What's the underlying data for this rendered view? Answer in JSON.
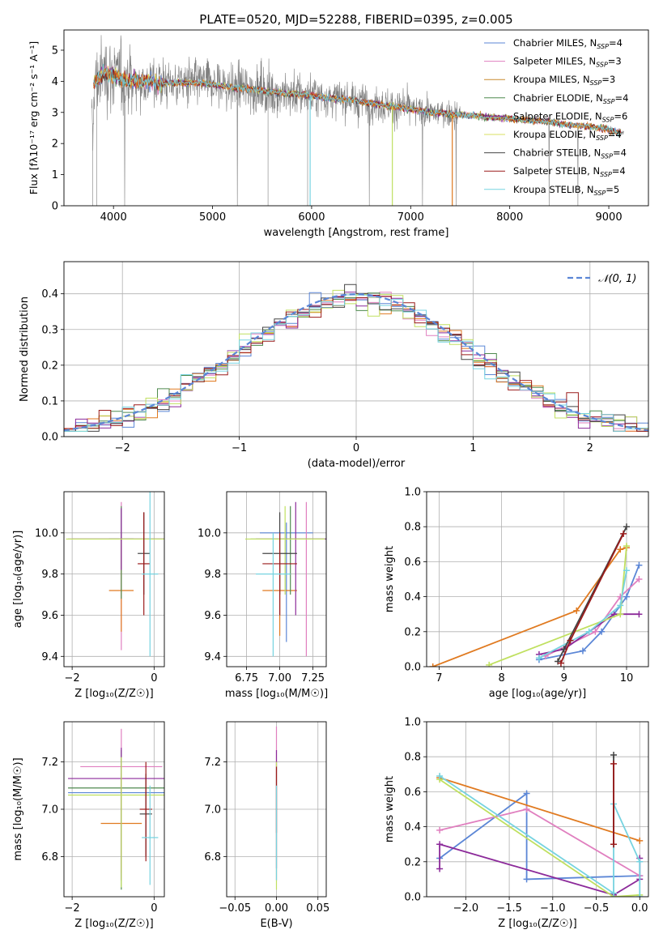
{
  "title": "PLATE=0520, MJD=52288, FIBERID=0395, z=0.005",
  "colors": {
    "c1": "#5b86d6",
    "c2": "#e07fbf",
    "c3": "#c98a2e",
    "c4": "#4f8a4f",
    "c5": "#8c2a9a",
    "c6": "#d8e060",
    "c7": "#444444",
    "c8": "#9b1b1b",
    "c9": "#76d3e0",
    "orange": "#e07a20",
    "green": "#c0e060",
    "gray": "#7f7f7f"
  },
  "chart_data": [
    {
      "id": "spectrum",
      "type": "line",
      "xlabel": "wavelength [Angstrom, rest frame]",
      "ylabel_html": "Flux [fλ10⁻¹⁷ erg cm⁻² s⁻¹ A⁻¹]",
      "xlim": [
        3500,
        9400
      ],
      "ylim": [
        0,
        5.65
      ],
      "xticks": [
        4000,
        5000,
        6000,
        7000,
        8000,
        9000
      ],
      "yticks": [
        0,
        1,
        2,
        3,
        4,
        5
      ],
      "legend": [
        {
          "label": "Chabrier MILES, N",
          "sub": "SSP",
          "suffix": "=4",
          "color": "c1"
        },
        {
          "label": "Salpeter MILES, N",
          "sub": "SSP",
          "suffix": "=3",
          "color": "c2"
        },
        {
          "label": "Kroupa MILES, N",
          "sub": "SSP",
          "suffix": "=3",
          "color": "c3"
        },
        {
          "label": "Chabrier ELODIE, N",
          "sub": "SSP",
          "suffix": "=4",
          "color": "c4"
        },
        {
          "label": "Salpeter ELODIE, N",
          "sub": "SSP",
          "suffix": "=6",
          "color": "c5"
        },
        {
          "label": "Kroupa ELODIE, N",
          "sub": "SSP",
          "suffix": "=4",
          "color": "c6"
        },
        {
          "label": "Chabrier STELIB, N",
          "sub": "SSP",
          "suffix": "=4",
          "color": "c7"
        },
        {
          "label": "Salpeter STELIB, N",
          "sub": "SSP",
          "suffix": "=4",
          "color": "c8"
        },
        {
          "label": "Kroupa STELIB, N",
          "sub": "SSP",
          "suffix": "=5",
          "color": "c9"
        }
      ],
      "model_envelope": [
        [
          3800,
          3.9
        ],
        [
          3900,
          4.3
        ],
        [
          4000,
          4.2
        ],
        [
          4100,
          4.05
        ],
        [
          4300,
          4.0
        ],
        [
          4500,
          3.95
        ],
        [
          4800,
          3.95
        ],
        [
          5000,
          3.9
        ],
        [
          5200,
          3.8
        ],
        [
          5400,
          3.75
        ],
        [
          5600,
          3.65
        ],
        [
          5800,
          3.6
        ],
        [
          6000,
          3.55
        ],
        [
          6200,
          3.45
        ],
        [
          6400,
          3.4
        ],
        [
          6600,
          3.3
        ],
        [
          6800,
          3.2
        ],
        [
          7000,
          3.1
        ],
        [
          7200,
          3.0
        ],
        [
          7400,
          2.95
        ],
        [
          7600,
          2.9
        ],
        [
          7800,
          2.85
        ],
        [
          8000,
          2.8
        ],
        [
          8200,
          2.75
        ],
        [
          8400,
          2.7
        ],
        [
          8600,
          2.6
        ],
        [
          8800,
          2.55
        ],
        [
          9000,
          2.45
        ],
        [
          9100,
          2.35
        ]
      ]
    },
    {
      "id": "residuals",
      "type": "histogram",
      "xlabel": "(data-model)/error",
      "ylabel": "Normed distribution",
      "xlim": [
        -2.5,
        2.5
      ],
      "ylim": [
        0,
        0.49
      ],
      "xticks": [
        -2,
        -1,
        0,
        1,
        2
      ],
      "yticks": [
        0.0,
        0.1,
        0.2,
        0.3,
        0.4
      ],
      "legend_label": "𝒩(0, 1)",
      "bin_width": 0.1
    },
    {
      "id": "age_vs_Z",
      "type": "errorbar",
      "xlabel": "Z [log₁₀(Z/Z☉)]",
      "ylabel": "age  [log₁₀(age/yr)]",
      "xlim": [
        -2.2,
        0.25
      ],
      "ylim": [
        9.35,
        10.2
      ],
      "xticks": [
        -2,
        0
      ],
      "yticks": [
        9.4,
        9.6,
        9.8,
        10.0
      ],
      "points": [
        {
          "x": -0.8,
          "y": 9.97,
          "xerr": 1.3,
          "yerr": 0.15,
          "color": "c1"
        },
        {
          "x": -0.8,
          "y": 9.97,
          "xerr": 1.3,
          "yerr": 0.0,
          "color": "c2",
          "ymin": 9.43,
          "ymax": 10.15
        },
        {
          "x": -0.8,
          "y": 9.72,
          "xerr": 0.3,
          "yerr": 0.0,
          "color": "orange",
          "ymin": 9.52,
          "ymax": 9.97
        },
        {
          "x": -0.8,
          "y": 9.97,
          "xerr": 0.3,
          "yerr": 0.0,
          "color": "c4",
          "ymin": 9.68,
          "ymax": 10.13
        },
        {
          "x": -0.8,
          "y": 9.97,
          "xerr": 1.2,
          "yerr": 0.15,
          "color": "c5"
        },
        {
          "x": -0.8,
          "y": 9.97,
          "xerr": 1.35,
          "yerr": 0.0,
          "color": "green"
        },
        {
          "x": -0.25,
          "y": 9.9,
          "xerr": 0.15,
          "yerr": 0.2,
          "color": "c7"
        },
        {
          "x": -0.25,
          "y": 9.85,
          "xerr": 0.15,
          "yerr": 0.25,
          "color": "c8"
        },
        {
          "x": -0.1,
          "y": 9.8,
          "xerr": 0.2,
          "yerr": 0.4,
          "color": "c9"
        }
      ]
    },
    {
      "id": "age_vs_mass",
      "type": "errorbar",
      "xlabel": "mass [log₁₀(M/M☉)]",
      "xlim": [
        6.6,
        7.35
      ],
      "ylim": [
        9.35,
        10.2
      ],
      "xticks": [
        6.75,
        7.0,
        7.25
      ],
      "yticks": [
        9.4,
        9.6,
        9.8,
        10.0
      ],
      "points": [
        {
          "x": 7.05,
          "y": 10.0,
          "xerr": 0.2,
          "ymin": 9.47,
          "ymax": 10.05,
          "color": "c1"
        },
        {
          "x": 7.2,
          "y": 9.97,
          "xerr": 0.18,
          "ymin": 9.4,
          "ymax": 10.15,
          "color": "c2"
        },
        {
          "x": 7.0,
          "y": 9.72,
          "xerr": 0.13,
          "ymin": 9.5,
          "ymax": 9.9,
          "color": "orange"
        },
        {
          "x": 7.08,
          "y": 9.97,
          "xerr": 0.3,
          "ymin": 9.7,
          "ymax": 10.13,
          "color": "c4"
        },
        {
          "x": 7.12,
          "y": 9.97,
          "xerr": 0.3,
          "ymin": 9.6,
          "ymax": 10.15,
          "color": "c5"
        },
        {
          "x": 7.04,
          "y": 9.97,
          "xerr": 0.3,
          "ymin": 9.7,
          "ymax": 10.13,
          "color": "green"
        },
        {
          "x": 7.0,
          "y": 9.9,
          "xerr": 0.13,
          "ymin": 9.7,
          "ymax": 10.1,
          "color": "c7"
        },
        {
          "x": 7.0,
          "y": 9.85,
          "xerr": 0.13,
          "ymin": 9.6,
          "ymax": 10.0,
          "color": "c8"
        },
        {
          "x": 6.95,
          "y": 9.8,
          "xerr": 0.13,
          "ymin": 9.4,
          "ymax": 10.0,
          "color": "c9"
        }
      ]
    },
    {
      "id": "mass_weight_vs_age",
      "type": "line",
      "xlabel": "age  [log₁₀(age/yr)]",
      "ylabel": "mass weight",
      "xlim": [
        6.8,
        10.35
      ],
      "ylim": [
        0,
        1.0
      ],
      "xticks": [
        7,
        8,
        9,
        10
      ],
      "yticks": [
        0.0,
        0.2,
        0.4,
        0.6,
        0.8,
        1.0
      ],
      "series": [
        {
          "color": "c1",
          "x": [
            8.6,
            9.3,
            9.6,
            10.0,
            10.2
          ],
          "y": [
            0.04,
            0.09,
            0.2,
            0.4,
            0.58
          ]
        },
        {
          "color": "c2",
          "x": [
            8.7,
            9.5,
            9.9,
            10.2
          ],
          "y": [
            0.06,
            0.2,
            0.4,
            0.5
          ]
        },
        {
          "color": "orange",
          "x": [
            6.9,
            9.2,
            9.9,
            10.0
          ],
          "y": [
            0.0,
            0.32,
            0.67,
            0.68
          ]
        },
        {
          "color": "c5",
          "x": [
            8.6,
            9.0,
            9.8,
            10.2
          ],
          "y": [
            0.07,
            0.1,
            0.3,
            0.3
          ]
        },
        {
          "color": "green",
          "x": [
            7.8,
            9.9,
            10.0
          ],
          "y": [
            0.01,
            0.3,
            0.69
          ]
        },
        {
          "color": "c9",
          "x": [
            8.6,
            9.4,
            9.9,
            10.0
          ],
          "y": [
            0.05,
            0.2,
            0.35,
            0.55
          ]
        },
        {
          "color": "c7",
          "x": [
            8.9,
            9.0,
            10.0
          ],
          "y": [
            0.03,
            0.1,
            0.8
          ]
        },
        {
          "color": "c8",
          "x": [
            8.95,
            9.1,
            9.95
          ],
          "y": [
            0.02,
            0.15,
            0.76
          ]
        }
      ]
    },
    {
      "id": "mass_vs_Z",
      "type": "errorbar",
      "xlabel": "Z [log₁₀(Z/Z☉)]",
      "ylabel": "mass [log₁₀(M/M☉)]",
      "xlim": [
        -2.2,
        0.25
      ],
      "ylim": [
        6.63,
        7.37
      ],
      "xticks": [
        -2,
        0
      ],
      "yticks": [
        6.8,
        7.0,
        7.2
      ],
      "points": [
        {
          "x": -0.8,
          "y": 7.07,
          "xerr": 1.3,
          "ymin": 6.7,
          "ymax": 7.2,
          "color": "c1"
        },
        {
          "x": -0.8,
          "y": 7.18,
          "xerr": 1.0,
          "ymin": 6.9,
          "ymax": 7.34,
          "color": "c2"
        },
        {
          "x": -0.8,
          "y": 6.94,
          "xerr": 0.5,
          "ymin": 6.73,
          "ymax": 7.15,
          "color": "orange"
        },
        {
          "x": -0.8,
          "y": 7.09,
          "xerr": 1.3,
          "ymin": 6.66,
          "ymax": 7.25,
          "color": "c4"
        },
        {
          "x": -0.8,
          "y": 7.13,
          "xerr": 1.3,
          "ymin": 6.7,
          "ymax": 7.26,
          "color": "c5"
        },
        {
          "x": -0.8,
          "y": 7.06,
          "xerr": 1.3,
          "ymin": 6.67,
          "ymax": 7.22,
          "color": "green"
        },
        {
          "x": -0.2,
          "y": 6.98,
          "xerr": 0.15,
          "ymin": 6.8,
          "ymax": 7.15,
          "color": "c7"
        },
        {
          "x": -0.2,
          "y": 7.0,
          "xerr": 0.15,
          "ymin": 6.78,
          "ymax": 7.2,
          "color": "c8"
        },
        {
          "x": -0.1,
          "y": 6.88,
          "xerr": 0.2,
          "ymin": 6.68,
          "ymax": 7.1,
          "color": "c9"
        }
      ]
    },
    {
      "id": "mass_vs_EBV",
      "type": "errorbar",
      "xlabel": "E(B-V)",
      "xlim": [
        -0.06,
        0.06
      ],
      "ylim": [
        6.63,
        7.37
      ],
      "xticks": [
        -0.05,
        0.0,
        0.05
      ],
      "yticks": [
        6.8,
        7.0,
        7.2
      ],
      "points": [
        {
          "x": 0.0,
          "ymin": 6.7,
          "ymax": 7.35,
          "color": "c2"
        },
        {
          "x": 0.0,
          "ymin": 6.75,
          "ymax": 7.25,
          "color": "c5"
        },
        {
          "x": 0.0,
          "ymin": 6.66,
          "ymax": 7.2,
          "color": "green"
        },
        {
          "x": 0.0,
          "ymin": 6.9,
          "ymax": 7.18,
          "color": "c8"
        },
        {
          "x": 0.0,
          "ymin": 6.7,
          "ymax": 7.1,
          "color": "c9"
        }
      ]
    },
    {
      "id": "mass_weight_vs_Z",
      "type": "line",
      "xlabel": "Z [log₁₀(Z/Z☉)]",
      "ylabel": "mass weight",
      "xlim": [
        -2.45,
        0.1
      ],
      "ylim": [
        0,
        1.0
      ],
      "xticks": [
        -2.0,
        -1.5,
        -1.0,
        -0.5,
        0.0
      ],
      "yticks": [
        0.0,
        0.2,
        0.4,
        0.6,
        0.8,
        1.0
      ],
      "series": [
        {
          "color": "c1",
          "x": [
            -2.3,
            -1.3,
            -1.3,
            0.0
          ],
          "y": [
            0.22,
            0.59,
            0.1,
            0.12
          ]
        },
        {
          "color": "c2",
          "x": [
            -2.3,
            -1.3,
            0.0
          ],
          "y": [
            0.38,
            0.5,
            0.12
          ]
        },
        {
          "color": "orange",
          "x": [
            -2.3,
            0.0
          ],
          "y": [
            0.68,
            0.32
          ]
        },
        {
          "color": "c5",
          "x": [
            -2.3,
            -2.3,
            -0.3,
            0.0,
            0.0
          ],
          "y": [
            0.16,
            0.3,
            0.01,
            0.1,
            0.22
          ]
        },
        {
          "color": "green",
          "x": [
            -2.3,
            -0.3,
            0.0
          ],
          "y": [
            0.67,
            0.0,
            0.01
          ]
        },
        {
          "color": "c9",
          "x": [
            -2.3,
            -0.3,
            -0.3,
            0.0,
            0.0
          ],
          "y": [
            0.69,
            0.02,
            0.53,
            0.2,
            0.0
          ]
        },
        {
          "color": "c7",
          "x": [
            -0.3,
            -0.3
          ],
          "y": [
            0.3,
            0.81
          ]
        },
        {
          "color": "c8",
          "x": [
            -0.3,
            -0.3
          ],
          "y": [
            0.3,
            0.76
          ]
        }
      ]
    }
  ]
}
